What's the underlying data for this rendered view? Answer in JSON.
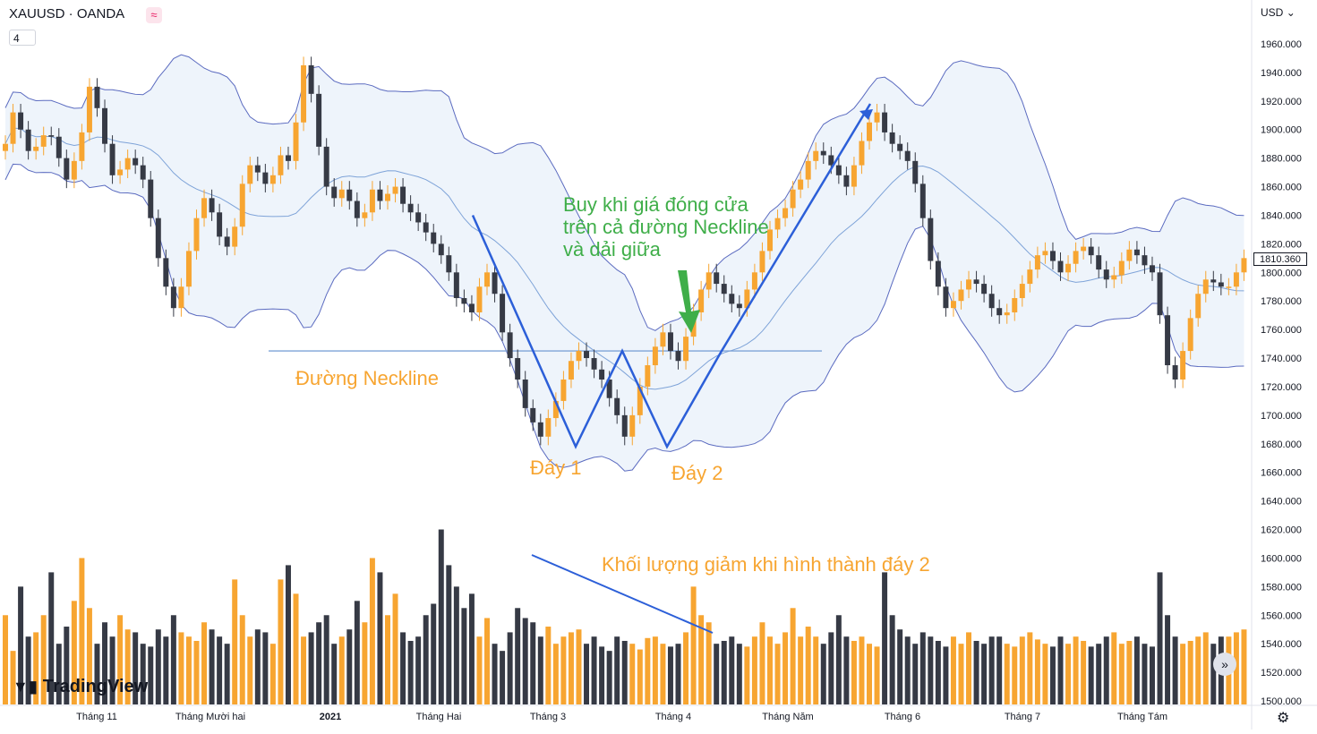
{
  "header": {
    "symbol": "XAUUSD · OANDA",
    "approx_badge": "≈",
    "interval": "4",
    "currency": "USD",
    "current_price": "1810.360"
  },
  "branding": {
    "logo_text": "TradingView"
  },
  "controls": {
    "scroll_forward": "»",
    "settings_icon": "⚙"
  },
  "annotations": {
    "neckline": "Đường Neckline",
    "bottom1": "Đáy 1",
    "bottom2": "Đáy 2",
    "buy": "Buy khi giá đóng cửa\ntrên cả đường Neckline\nvà dải giữa",
    "volume": "Khối lượng giảm khi hình thành đáy 2"
  },
  "colors": {
    "up": "#f7a531",
    "down": "#363a45",
    "band_line": "#5b6bc0",
    "band_fill": "#eef4fb",
    "mid_line": "#7ea3d8",
    "pattern_line": "#2c5fd8",
    "neckline": "#7ea3d8",
    "arrow": "#3fae49",
    "grid_text": "#131722"
  },
  "chart_data": {
    "type": "candlestick",
    "title": "",
    "y_axis": {
      "min": 1500,
      "max": 1970,
      "ticks": [
        "1960.000",
        "1940.000",
        "1920.000",
        "1900.000",
        "1880.000",
        "1860.000",
        "1840.000",
        "1820.000",
        "1800.000",
        "1780.000",
        "1760.000",
        "1740.000",
        "1720.000",
        "1700.000",
        "1680.000",
        "1660.000",
        "1640.000",
        "1620.000",
        "1600.000",
        "1580.000",
        "1560.000",
        "1540.000",
        "1520.000",
        "1500.000"
      ]
    },
    "x_axis": {
      "ticks": [
        "Tháng 11",
        "Tháng Mười hai",
        "2021",
        "Tháng Hai",
        "Tháng 3",
        "Tháng 4",
        "Tháng Năm",
        "Tháng 6",
        "Tháng 7",
        "Tháng Tám"
      ]
    },
    "neckline_price": 1745,
    "closes": [
      1890,
      1912,
      1900,
      1885,
      1888,
      1896,
      1895,
      1880,
      1865,
      1878,
      1898,
      1930,
      1915,
      1890,
      1868,
      1872,
      1880,
      1875,
      1865,
      1838,
      1810,
      1790,
      1775,
      1790,
      1815,
      1838,
      1852,
      1842,
      1825,
      1818,
      1832,
      1862,
      1875,
      1870,
      1862,
      1868,
      1882,
      1878,
      1905,
      1945,
      1925,
      1888,
      1860,
      1852,
      1858,
      1850,
      1838,
      1842,
      1858,
      1850,
      1855,
      1860,
      1848,
      1842,
      1835,
      1828,
      1820,
      1812,
      1800,
      1782,
      1778,
      1772,
      1790,
      1800,
      1785,
      1758,
      1740,
      1725,
      1705,
      1695,
      1685,
      1698,
      1710,
      1725,
      1738,
      1745,
      1740,
      1732,
      1725,
      1712,
      1700,
      1685,
      1700,
      1720,
      1735,
      1748,
      1758,
      1745,
      1738,
      1755,
      1772,
      1788,
      1800,
      1792,
      1785,
      1778,
      1775,
      1788,
      1800,
      1815,
      1830,
      1838,
      1845,
      1858,
      1865,
      1878,
      1885,
      1882,
      1875,
      1868,
      1860,
      1875,
      1892,
      1905,
      1912,
      1898,
      1890,
      1885,
      1878,
      1862,
      1838,
      1808,
      1790,
      1775,
      1780,
      1788,
      1795,
      1792,
      1785,
      1775,
      1770,
      1772,
      1782,
      1792,
      1802,
      1812,
      1815,
      1808,
      1800,
      1806,
      1815,
      1818,
      1812,
      1802,
      1795,
      1798,
      1808,
      1816,
      1812,
      1805,
      1800,
      1770,
      1735,
      1725,
      1745,
      1768,
      1785,
      1795,
      1793,
      1790,
      1790,
      1800,
      1810
    ],
    "volume_levels": [
      1560,
      1535,
      1580,
      1545,
      1548,
      1560,
      1590,
      1540,
      1552,
      1570,
      1600,
      1565,
      1540,
      1555,
      1545,
      1560,
      1550,
      1548,
      1540,
      1538,
      1550,
      1545,
      1560,
      1548,
      1545,
      1542,
      1555,
      1550,
      1545,
      1540,
      1585,
      1560,
      1545,
      1550,
      1548,
      1540,
      1585,
      1595,
      1575,
      1545,
      1548,
      1555,
      1560,
      1540,
      1545,
      1550,
      1570,
      1555,
      1600,
      1590,
      1560,
      1575,
      1548,
      1542,
      1545,
      1560,
      1568,
      1620,
      1595,
      1580,
      1565,
      1575,
      1545,
      1558,
      1540,
      1535,
      1548,
      1565,
      1558,
      1555,
      1545,
      1552,
      1540,
      1545,
      1548,
      1550,
      1540,
      1545,
      1538,
      1535,
      1545,
      1542,
      1540,
      1536,
      1544,
      1545,
      1540,
      1538,
      1540,
      1548,
      1580,
      1560,
      1555,
      1540,
      1542,
      1545,
      1540,
      1538,
      1545,
      1555,
      1545,
      1540,
      1548,
      1565,
      1545,
      1552,
      1545,
      1540,
      1548,
      1560,
      1545,
      1542,
      1545,
      1540,
      1538,
      1590,
      1560,
      1550,
      1545,
      1540,
      1548,
      1545,
      1542,
      1538,
      1545,
      1540,
      1548,
      1542,
      1540,
      1545,
      1545,
      1540,
      1538,
      1545,
      1548,
      1543,
      1540,
      1538,
      1545,
      1540,
      1545,
      1542,
      1538,
      1540,
      1545,
      1548,
      1540,
      1542,
      1545,
      1540,
      1538,
      1590,
      1560,
      1545,
      1540,
      1542,
      1545,
      1548,
      1540,
      1545,
      1545,
      1548,
      1550
    ]
  }
}
